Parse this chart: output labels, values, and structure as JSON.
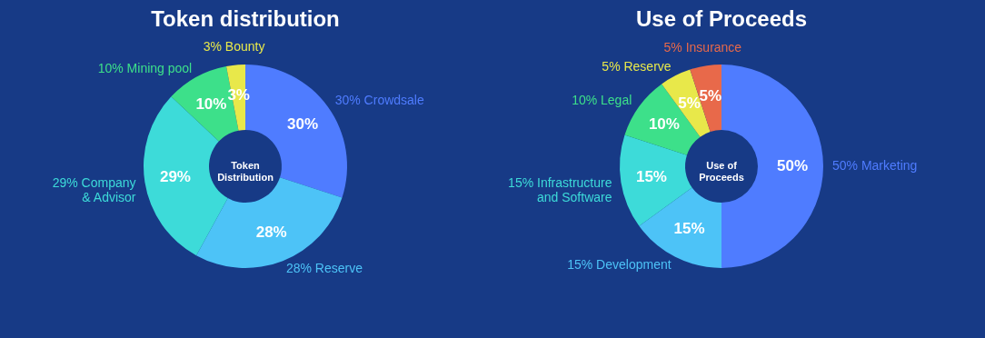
{
  "chart_data": [
    {
      "type": "donut",
      "title": "Token distribution",
      "categories": [
        "30% Crowdsale",
        "28% Reserve",
        "29% Company\n& Advisor",
        "10% Mining pool",
        "3% Bounty"
      ],
      "values": [
        30,
        28,
        29,
        10,
        3
      ],
      "colors": [
        "#4f7cff",
        "#4dc3f7",
        "#3ddbd9",
        "#3de08a",
        "#e8e84a"
      ],
      "value_labels": [
        "30%",
        "28%",
        "29%",
        "10%",
        "3%"
      ],
      "annotations": [
        "Token\nDistribution"
      ]
    },
    {
      "type": "donut",
      "title": "Use of Proceeds",
      "categories": [
        "50% Marketing",
        "15% Development",
        "15% Infrastructure\nand Software",
        "10% Legal",
        "5% Reserve",
        "5% Insurance"
      ],
      "values": [
        50,
        15,
        15,
        10,
        5,
        5
      ],
      "colors": [
        "#4f7cff",
        "#4dc3f7",
        "#3ddbd9",
        "#3de08a",
        "#e8e84a",
        "#e8694a"
      ],
      "value_labels": [
        "50%",
        "15%",
        "15%",
        "10%",
        "5%",
        "5%"
      ],
      "annotations": [
        "Use of\nProceeds"
      ]
    }
  ]
}
